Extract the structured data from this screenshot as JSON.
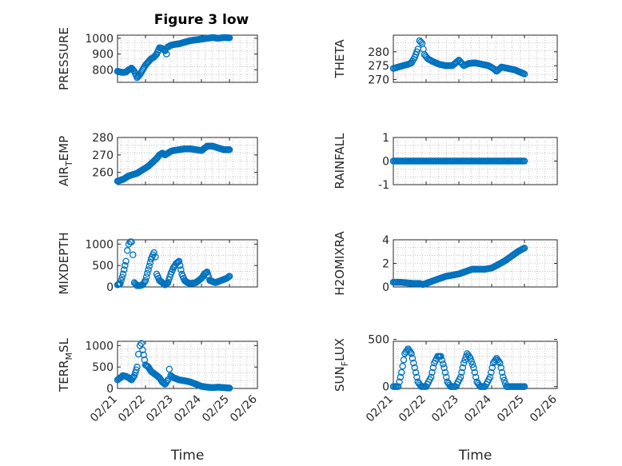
{
  "figure": {
    "title": "Figure 3 low"
  },
  "chart_data": [
    {
      "type": "scatter",
      "ylabel": "PRESSURE",
      "ylabel_sub": "",
      "ylabel_tail": "",
      "xlim": [
        0,
        5
      ],
      "ylim": [
        720,
        1020
      ],
      "yticks": [
        800,
        900,
        1000
      ],
      "xticks": [
        0,
        1,
        2,
        3,
        4,
        5
      ],
      "xticklabels": [
        "02/21",
        "02/22",
        "02/23",
        "02/24",
        "02/25",
        "02/26"
      ],
      "show_xticklabels": false,
      "xlabel": "",
      "points": [
        [
          0,
          790
        ],
        [
          0.1,
          785
        ],
        [
          0.2,
          783
        ],
        [
          0.3,
          785
        ],
        [
          0.4,
          800
        ],
        [
          0.5,
          810
        ],
        [
          0.6,
          790
        ],
        [
          0.7,
          750
        ],
        [
          0.8,
          770
        ],
        [
          0.9,
          800
        ],
        [
          1.0,
          830
        ],
        [
          1.1,
          850
        ],
        [
          1.2,
          870
        ],
        [
          1.3,
          880
        ],
        [
          1.4,
          900
        ],
        [
          1.5,
          940
        ],
        [
          1.6,
          935
        ],
        [
          1.7,
          920
        ],
        [
          1.75,
          900
        ],
        [
          1.8,
          945
        ],
        [
          1.9,
          955
        ],
        [
          2.0,
          960
        ],
        [
          2.2,
          965
        ],
        [
          2.4,
          975
        ],
        [
          2.6,
          985
        ],
        [
          2.8,
          990
        ],
        [
          3.0,
          995
        ],
        [
          3.2,
          1000
        ],
        [
          3.4,
          1005
        ],
        [
          3.6,
          1000
        ],
        [
          3.8,
          1005
        ],
        [
          4.0,
          1003
        ]
      ]
    },
    {
      "type": "scatter",
      "ylabel": "THETA",
      "ylabel_sub": "",
      "ylabel_tail": "",
      "xlim": [
        0,
        5
      ],
      "ylim": [
        269,
        286
      ],
      "yticks": [
        270,
        275,
        280
      ],
      "xticks": [
        0,
        1,
        2,
        3,
        4,
        5
      ],
      "xticklabels": [
        "02/21",
        "02/22",
        "02/23",
        "02/24",
        "02/25",
        "02/26"
      ],
      "show_xticklabels": false,
      "xlabel": "",
      "points": [
        [
          0,
          274
        ],
        [
          0.15,
          274.5
        ],
        [
          0.3,
          275
        ],
        [
          0.45,
          275.5
        ],
        [
          0.55,
          276
        ],
        [
          0.65,
          278
        ],
        [
          0.75,
          281
        ],
        [
          0.8,
          284
        ],
        [
          0.88,
          283
        ],
        [
          0.95,
          279
        ],
        [
          1.05,
          277.5
        ],
        [
          1.2,
          276.5
        ],
        [
          1.4,
          275.5
        ],
        [
          1.6,
          275
        ],
        [
          1.8,
          275
        ],
        [
          2.0,
          277
        ],
        [
          2.15,
          275
        ],
        [
          2.3,
          275.8
        ],
        [
          2.5,
          276
        ],
        [
          2.7,
          275.5
        ],
        [
          2.9,
          275
        ],
        [
          3.05,
          274
        ],
        [
          3.15,
          273
        ],
        [
          3.3,
          274.5
        ],
        [
          3.5,
          274
        ],
        [
          3.7,
          273.5
        ],
        [
          3.9,
          272.5
        ],
        [
          4.0,
          272
        ]
      ]
    },
    {
      "type": "scatter",
      "ylabel": "AIR",
      "ylabel_sub": "T",
      "ylabel_tail": "EMP",
      "xlim": [
        0,
        5
      ],
      "ylim": [
        253,
        280
      ],
      "yticks": [
        260,
        270,
        280
      ],
      "xticks": [
        0,
        1,
        2,
        3,
        4,
        5
      ],
      "xticklabels": [
        "02/21",
        "02/22",
        "02/23",
        "02/24",
        "02/25",
        "02/26"
      ],
      "show_xticklabels": false,
      "xlabel": "",
      "points": [
        [
          0,
          255
        ],
        [
          0.1,
          255.5
        ],
        [
          0.2,
          256
        ],
        [
          0.3,
          257
        ],
        [
          0.4,
          258
        ],
        [
          0.5,
          258.5
        ],
        [
          0.6,
          259
        ],
        [
          0.7,
          259.5
        ],
        [
          0.8,
          260.5
        ],
        [
          0.9,
          261.5
        ],
        [
          1.0,
          262.5
        ],
        [
          1.1,
          263.5
        ],
        [
          1.2,
          265
        ],
        [
          1.3,
          266.5
        ],
        [
          1.4,
          268
        ],
        [
          1.5,
          270
        ],
        [
          1.6,
          271
        ],
        [
          1.7,
          270
        ],
        [
          1.8,
          271
        ],
        [
          1.9,
          272
        ],
        [
          2.0,
          272.5
        ],
        [
          2.2,
          273
        ],
        [
          2.4,
          273.5
        ],
        [
          2.6,
          273.5
        ],
        [
          2.8,
          273
        ],
        [
          3.0,
          272.5
        ],
        [
          3.2,
          275
        ],
        [
          3.4,
          275
        ],
        [
          3.6,
          274
        ],
        [
          3.8,
          273
        ],
        [
          4.0,
          273
        ]
      ]
    },
    {
      "type": "scatter",
      "ylabel": "RAINFALL",
      "ylabel_sub": "",
      "ylabel_tail": "",
      "xlim": [
        0,
        5
      ],
      "ylim": [
        -1,
        1
      ],
      "yticks": [
        -1,
        0,
        1
      ],
      "xticks": [
        0,
        1,
        2,
        3,
        4,
        5
      ],
      "xticklabels": [
        "02/21",
        "02/22",
        "02/23",
        "02/24",
        "02/25",
        "02/26"
      ],
      "show_xticklabels": false,
      "xlabel": "",
      "points": [
        [
          0,
          0
        ],
        [
          0.5,
          0
        ],
        [
          1.0,
          0
        ],
        [
          1.5,
          0
        ],
        [
          2.0,
          0
        ],
        [
          2.5,
          0
        ],
        [
          3.0,
          0
        ],
        [
          3.5,
          0
        ],
        [
          4.0,
          0
        ]
      ]
    },
    {
      "type": "scatter",
      "ylabel": "MIXDEPTH",
      "ylabel_sub": "",
      "ylabel_tail": "",
      "xlim": [
        0,
        5
      ],
      "ylim": [
        0,
        1100
      ],
      "yticks": [
        0,
        500,
        1000
      ],
      "xticks": [
        0,
        1,
        2,
        3,
        4,
        5
      ],
      "xticklabels": [
        "02/21",
        "02/22",
        "02/23",
        "02/24",
        "02/25",
        "02/26"
      ],
      "show_xticklabels": false,
      "xlabel": "",
      "points": [
        [
          0,
          50
        ],
        [
          0.1,
          80
        ],
        [
          0.2,
          300
        ],
        [
          0.3,
          600
        ],
        [
          0.35,
          850
        ],
        [
          0.4,
          1000
        ],
        [
          0.45,
          1050
        ],
        [
          0.5,
          1050
        ],
        [
          0.55,
          750
        ],
        [
          0.6,
          100
        ],
        [
          0.7,
          30
        ],
        [
          0.8,
          30
        ],
        [
          0.9,
          50
        ],
        [
          1.0,
          150
        ],
        [
          1.1,
          400
        ],
        [
          1.2,
          650
        ],
        [
          1.3,
          800
        ],
        [
          1.35,
          700
        ],
        [
          1.4,
          300
        ],
        [
          1.5,
          150
        ],
        [
          1.6,
          100
        ],
        [
          1.7,
          50
        ],
        [
          1.8,
          100
        ],
        [
          1.9,
          300
        ],
        [
          2.0,
          450
        ],
        [
          2.1,
          550
        ],
        [
          2.2,
          600
        ],
        [
          2.3,
          300
        ],
        [
          2.4,
          150
        ],
        [
          2.5,
          100
        ],
        [
          2.6,
          80
        ],
        [
          2.8,
          100
        ],
        [
          3.0,
          200
        ],
        [
          3.1,
          300
        ],
        [
          3.2,
          350
        ],
        [
          3.3,
          150
        ],
        [
          3.5,
          100
        ],
        [
          3.7,
          150
        ],
        [
          3.9,
          200
        ],
        [
          4.0,
          250
        ]
      ]
    },
    {
      "type": "scatter",
      "ylabel": "H2OMIXRA",
      "ylabel_sub": "",
      "ylabel_tail": "",
      "xlim": [
        0,
        5
      ],
      "ylim": [
        0,
        4
      ],
      "yticks": [
        0,
        2,
        4
      ],
      "xticks": [
        0,
        1,
        2,
        3,
        4,
        5
      ],
      "xticklabels": [
        "02/21",
        "02/22",
        "02/23",
        "02/24",
        "02/25",
        "02/26"
      ],
      "show_xticklabels": false,
      "xlabel": "",
      "points": [
        [
          0,
          0.4
        ],
        [
          0.2,
          0.4
        ],
        [
          0.4,
          0.35
        ],
        [
          0.6,
          0.3
        ],
        [
          0.8,
          0.3
        ],
        [
          0.9,
          0.2
        ],
        [
          1.0,
          0.3
        ],
        [
          1.2,
          0.5
        ],
        [
          1.4,
          0.7
        ],
        [
          1.6,
          0.9
        ],
        [
          1.8,
          1.0
        ],
        [
          2.0,
          1.1
        ],
        [
          2.2,
          1.3
        ],
        [
          2.4,
          1.5
        ],
        [
          2.6,
          1.5
        ],
        [
          2.8,
          1.5
        ],
        [
          3.0,
          1.6
        ],
        [
          3.2,
          1.9
        ],
        [
          3.4,
          2.2
        ],
        [
          3.6,
          2.6
        ],
        [
          3.8,
          3.0
        ],
        [
          4.0,
          3.3
        ]
      ]
    },
    {
      "type": "scatter",
      "ylabel": "TERR",
      "ylabel_sub": "M",
      "ylabel_tail": "SL",
      "xlim": [
        0,
        5
      ],
      "ylim": [
        0,
        1100
      ],
      "yticks": [
        0,
        500,
        1000
      ],
      "xticks": [
        0,
        1,
        2,
        3,
        4,
        5
      ],
      "xticklabels": [
        "02/21",
        "02/22",
        "02/23",
        "02/24",
        "02/25",
        "02/26"
      ],
      "show_xticklabels": true,
      "xlabel": "Time",
      "points": [
        [
          0,
          200
        ],
        [
          0.1,
          250
        ],
        [
          0.2,
          300
        ],
        [
          0.3,
          280
        ],
        [
          0.4,
          250
        ],
        [
          0.5,
          200
        ],
        [
          0.6,
          300
        ],
        [
          0.7,
          500
        ],
        [
          0.75,
          800
        ],
        [
          0.8,
          1000
        ],
        [
          0.85,
          1050
        ],
        [
          0.9,
          900
        ],
        [
          1.0,
          550
        ],
        [
          1.1,
          500
        ],
        [
          1.2,
          400
        ],
        [
          1.3,
          350
        ],
        [
          1.4,
          300
        ],
        [
          1.5,
          250
        ],
        [
          1.6,
          150
        ],
        [
          1.7,
          100
        ],
        [
          1.8,
          200
        ],
        [
          1.85,
          450
        ],
        [
          1.9,
          300
        ],
        [
          2.0,
          250
        ],
        [
          2.2,
          200
        ],
        [
          2.4,
          180
        ],
        [
          2.6,
          150
        ],
        [
          2.8,
          100
        ],
        [
          3.0,
          50
        ],
        [
          3.2,
          30
        ],
        [
          3.4,
          20
        ],
        [
          3.6,
          30
        ],
        [
          3.8,
          20
        ],
        [
          4.0,
          10
        ]
      ]
    },
    {
      "type": "scatter",
      "ylabel": "SUN",
      "ylabel_sub": "F",
      "ylabel_tail": "LUX",
      "xlim": [
        0,
        5
      ],
      "ylim": [
        -20,
        480
      ],
      "yticks": [
        0,
        500
      ],
      "xticks": [
        0,
        1,
        2,
        3,
        4,
        5
      ],
      "xticklabels": [
        "02/21",
        "02/22",
        "02/23",
        "02/24",
        "02/25",
        "02/26"
      ],
      "show_xticklabels": true,
      "xlabel": "Time",
      "points": [
        [
          0,
          0
        ],
        [
          0.15,
          0
        ],
        [
          0.25,
          150
        ],
        [
          0.35,
          350
        ],
        [
          0.45,
          400
        ],
        [
          0.55,
          350
        ],
        [
          0.65,
          200
        ],
        [
          0.75,
          50
        ],
        [
          0.85,
          0
        ],
        [
          1.0,
          0
        ],
        [
          1.15,
          100
        ],
        [
          1.25,
          250
        ],
        [
          1.35,
          320
        ],
        [
          1.45,
          320
        ],
        [
          1.55,
          200
        ],
        [
          1.65,
          50
        ],
        [
          1.75,
          0
        ],
        [
          1.9,
          0
        ],
        [
          2.05,
          100
        ],
        [
          2.15,
          250
        ],
        [
          2.25,
          350
        ],
        [
          2.35,
          300
        ],
        [
          2.45,
          200
        ],
        [
          2.55,
          50
        ],
        [
          2.65,
          0
        ],
        [
          2.8,
          0
        ],
        [
          2.95,
          100
        ],
        [
          3.05,
          250
        ],
        [
          3.15,
          300
        ],
        [
          3.25,
          250
        ],
        [
          3.35,
          100
        ],
        [
          3.45,
          0
        ],
        [
          3.6,
          0
        ],
        [
          3.8,
          0
        ],
        [
          4.0,
          0
        ]
      ]
    }
  ]
}
